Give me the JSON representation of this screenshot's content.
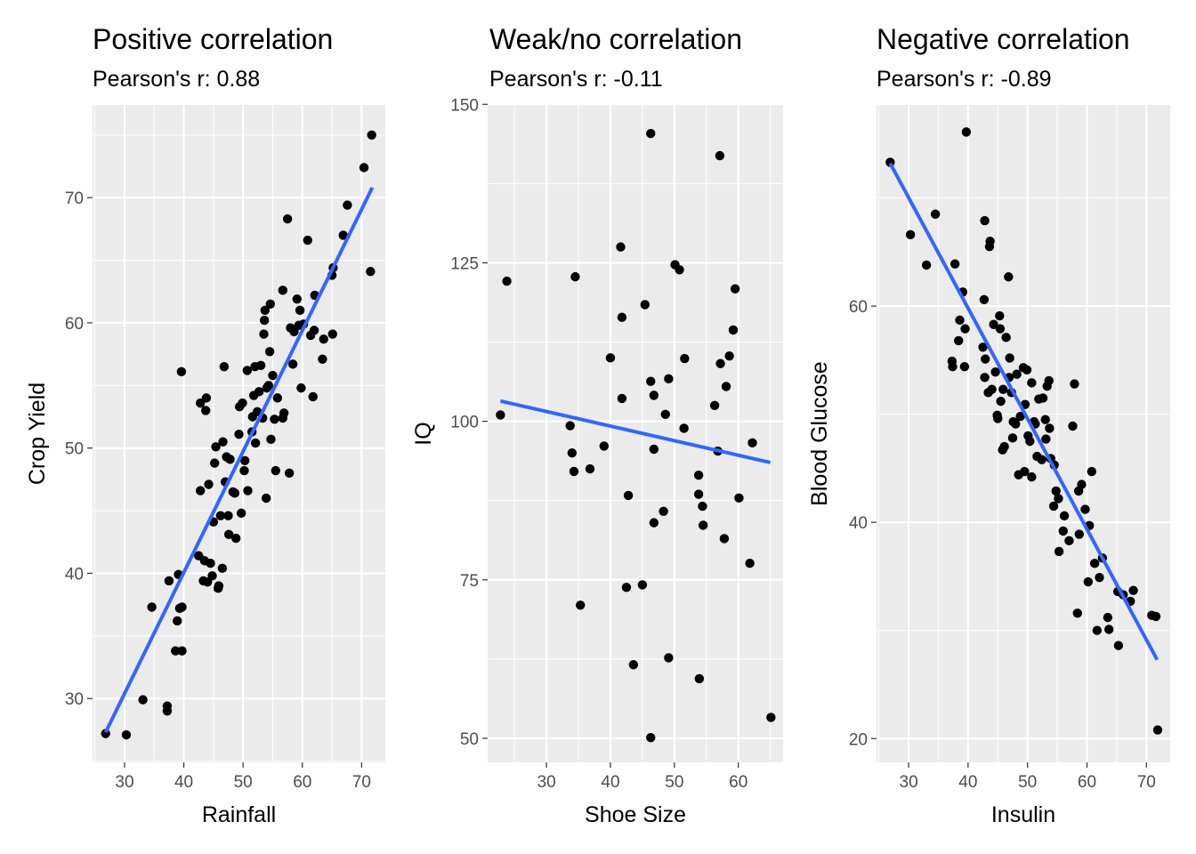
{
  "colors": {
    "panel_bg": "#ebebeb",
    "grid": "#ffffff",
    "point": "#000000",
    "fit_line": "#3366ff",
    "tick": "#333333"
  },
  "chart_data": [
    {
      "type": "scatter",
      "title": "Positive correlation",
      "subtitle": "Pearson's r:  0.88",
      "xlabel": "Rainfall",
      "ylabel": "Crop Yield",
      "xlim": [
        24.6,
        74.0
      ],
      "ylim": [
        24.9,
        77.4
      ],
      "x_ticks": [
        30,
        40,
        50,
        60,
        70
      ],
      "y_ticks": [
        30,
        40,
        50,
        60,
        70
      ],
      "grid": true,
      "fit_line": [
        [
          26.8,
          27.3
        ],
        [
          71.8,
          70.8
        ]
      ],
      "points": [
        [
          26.8,
          27.2
        ],
        [
          30.3,
          27.1
        ],
        [
          33.1,
          29.9
        ],
        [
          34.6,
          37.3
        ],
        [
          37.2,
          29.4
        ],
        [
          37.2,
          29.0
        ],
        [
          37.5,
          39.4
        ],
        [
          38.6,
          33.8
        ],
        [
          38.9,
          36.2
        ],
        [
          39.1,
          39.9
        ],
        [
          39.3,
          37.2
        ],
        [
          39.7,
          37.3
        ],
        [
          39.7,
          33.8
        ],
        [
          39.6,
          56.1
        ],
        [
          42.5,
          41.4
        ],
        [
          42.8,
          46.6
        ],
        [
          42.8,
          53.6
        ],
        [
          43.3,
          39.4
        ],
        [
          43.5,
          41.0
        ],
        [
          43.7,
          53.0
        ],
        [
          43.8,
          54.0
        ],
        [
          44.0,
          39.3
        ],
        [
          44.2,
          47.1
        ],
        [
          44.5,
          40.8
        ],
        [
          44.8,
          39.8
        ],
        [
          45.0,
          44.1
        ],
        [
          45.2,
          48.8
        ],
        [
          45.4,
          50.1
        ],
        [
          45.8,
          38.8
        ],
        [
          45.9,
          39.0
        ],
        [
          46.2,
          44.6
        ],
        [
          46.5,
          40.4
        ],
        [
          46.6,
          50.5
        ],
        [
          46.8,
          56.5
        ],
        [
          47.0,
          47.3
        ],
        [
          47.2,
          49.3
        ],
        [
          47.5,
          44.6
        ],
        [
          47.6,
          43.1
        ],
        [
          47.8,
          49.1
        ],
        [
          48.3,
          46.5
        ],
        [
          48.6,
          46.4
        ],
        [
          48.8,
          42.8
        ],
        [
          49.3,
          51.1
        ],
        [
          49.4,
          53.3
        ],
        [
          49.7,
          44.8
        ],
        [
          49.9,
          53.6
        ],
        [
          50.2,
          48.2
        ],
        [
          50.3,
          49.0
        ],
        [
          50.7,
          56.2
        ],
        [
          50.8,
          46.6
        ],
        [
          51.5,
          51.3
        ],
        [
          51.6,
          52.5
        ],
        [
          51.8,
          54.2
        ],
        [
          52.0,
          56.5
        ],
        [
          52.1,
          50.4
        ],
        [
          52.4,
          52.9
        ],
        [
          52.7,
          54.5
        ],
        [
          53.0,
          56.6
        ],
        [
          53.3,
          52.4
        ],
        [
          53.5,
          59.1
        ],
        [
          53.6,
          60.2
        ],
        [
          53.7,
          61.0
        ],
        [
          53.9,
          46.0
        ],
        [
          54.0,
          54.8
        ],
        [
          54.3,
          55.0
        ],
        [
          54.5,
          57.7
        ],
        [
          54.6,
          61.5
        ],
        [
          54.7,
          50.7
        ],
        [
          55.0,
          55.8
        ],
        [
          55.3,
          52.3
        ],
        [
          55.5,
          48.2
        ],
        [
          55.8,
          54.0
        ],
        [
          56.7,
          62.6
        ],
        [
          56.7,
          52.4
        ],
        [
          56.9,
          52.8
        ],
        [
          57.5,
          68.3
        ],
        [
          57.8,
          48.0
        ],
        [
          58.0,
          59.6
        ],
        [
          58.4,
          56.7
        ],
        [
          58.6,
          59.3
        ],
        [
          59.1,
          61.9
        ],
        [
          59.4,
          59.8
        ],
        [
          59.6,
          61.0
        ],
        [
          59.8,
          54.8
        ],
        [
          60.2,
          59.9
        ],
        [
          60.9,
          66.6
        ],
        [
          61.4,
          59.0
        ],
        [
          61.8,
          54.1
        ],
        [
          62.0,
          59.4
        ],
        [
          62.1,
          62.2
        ],
        [
          63.4,
          57.1
        ],
        [
          63.6,
          58.7
        ],
        [
          65.1,
          59.1
        ],
        [
          65.2,
          64.4
        ],
        [
          65.0,
          63.8
        ],
        [
          66.9,
          67.0
        ],
        [
          67.6,
          69.4
        ],
        [
          70.4,
          72.4
        ],
        [
          71.5,
          64.1
        ],
        [
          71.7,
          75.0
        ]
      ]
    },
    {
      "type": "scatter",
      "title": "Weak/no correlation",
      "subtitle": "Pearson's r:  -0.11",
      "xlabel": "Shoe Size",
      "ylabel": "IQ",
      "xlim": [
        20.8,
        67.0
      ],
      "ylim": [
        46.2,
        149.9
      ],
      "x_ticks": [
        30,
        40,
        50,
        60
      ],
      "y_ticks": [
        50,
        75,
        100,
        125,
        150
      ],
      "grid": true,
      "fit_line": [
        [
          22.8,
          103.2
        ],
        [
          65.0,
          93.5
        ]
      ],
      "points": [
        [
          22.8,
          101.0
        ],
        [
          23.8,
          122.1
        ],
        [
          33.7,
          99.3
        ],
        [
          34.0,
          95.0
        ],
        [
          34.3,
          92.1
        ],
        [
          34.5,
          122.8
        ],
        [
          35.3,
          71.0
        ],
        [
          36.8,
          92.5
        ],
        [
          39.0,
          96.1
        ],
        [
          40.0,
          110.0
        ],
        [
          41.6,
          127.5
        ],
        [
          41.8,
          116.4
        ],
        [
          41.8,
          103.6
        ],
        [
          42.5,
          73.8
        ],
        [
          42.8,
          88.3
        ],
        [
          43.6,
          61.6
        ],
        [
          45.0,
          74.2
        ],
        [
          45.4,
          118.4
        ],
        [
          46.3,
          145.4
        ],
        [
          46.3,
          106.3
        ],
        [
          46.3,
          50.1
        ],
        [
          46.8,
          104.1
        ],
        [
          46.8,
          95.6
        ],
        [
          46.8,
          84.0
        ],
        [
          48.3,
          85.8
        ],
        [
          48.6,
          101.1
        ],
        [
          49.1,
          106.7
        ],
        [
          49.1,
          62.7
        ],
        [
          50.1,
          124.7
        ],
        [
          50.8,
          123.9
        ],
        [
          51.5,
          98.9
        ],
        [
          51.6,
          109.9
        ],
        [
          53.8,
          91.5
        ],
        [
          53.8,
          88.5
        ],
        [
          53.9,
          59.4
        ],
        [
          54.4,
          86.6
        ],
        [
          54.5,
          83.6
        ],
        [
          56.3,
          102.5
        ],
        [
          56.8,
          95.3
        ],
        [
          57.1,
          141.9
        ],
        [
          57.2,
          109.1
        ],
        [
          57.8,
          81.5
        ],
        [
          58.1,
          105.5
        ],
        [
          58.6,
          110.3
        ],
        [
          59.2,
          114.4
        ],
        [
          59.5,
          120.9
        ],
        [
          60.1,
          87.9
        ],
        [
          61.8,
          77.6
        ],
        [
          62.2,
          96.6
        ],
        [
          65.1,
          53.3
        ]
      ]
    },
    {
      "type": "scatter",
      "title": "Negative correlation",
      "subtitle": "Pearson's r:  -0.89",
      "xlabel": "Insulin",
      "ylabel": "Blood Glucose",
      "xlim": [
        24.6,
        74.0
      ],
      "ylim": [
        17.8,
        78.6
      ],
      "x_ticks": [
        30,
        40,
        50,
        60,
        70
      ],
      "y_ticks": [
        20,
        40,
        60
      ],
      "grid": true,
      "fit_line": [
        [
          26.9,
          73.2
        ],
        [
          71.8,
          27.3
        ]
      ],
      "points": [
        [
          26.9,
          73.3
        ],
        [
          30.3,
          66.6
        ],
        [
          33.0,
          63.8
        ],
        [
          34.5,
          68.5
        ],
        [
          37.3,
          54.9
        ],
        [
          37.4,
          54.4
        ],
        [
          37.8,
          63.9
        ],
        [
          38.4,
          56.8
        ],
        [
          38.6,
          58.7
        ],
        [
          39.1,
          61.3
        ],
        [
          39.4,
          54.4
        ],
        [
          39.5,
          57.9
        ],
        [
          39.7,
          76.1
        ],
        [
          42.5,
          56.2
        ],
        [
          42.7,
          60.6
        ],
        [
          42.8,
          53.4
        ],
        [
          42.9,
          55.1
        ],
        [
          42.8,
          67.9
        ],
        [
          43.4,
          52.0
        ],
        [
          43.6,
          65.5
        ],
        [
          43.7,
          66.0
        ],
        [
          44.0,
          52.3
        ],
        [
          44.3,
          58.3
        ],
        [
          44.6,
          53.9
        ],
        [
          44.9,
          49.9
        ],
        [
          45.0,
          49.6
        ],
        [
          45.3,
          59.1
        ],
        [
          45.4,
          57.9
        ],
        [
          45.5,
          51.2
        ],
        [
          45.8,
          46.7
        ],
        [
          45.9,
          52.3
        ],
        [
          46.1,
          47.0
        ],
        [
          46.4,
          57.1
        ],
        [
          46.8,
          62.7
        ],
        [
          46.9,
          53.4
        ],
        [
          47.0,
          55.2
        ],
        [
          47.3,
          52.0
        ],
        [
          47.5,
          47.8
        ],
        [
          47.6,
          49.3
        ],
        [
          48.0,
          49.1
        ],
        [
          48.2,
          53.7
        ],
        [
          48.5,
          44.4
        ],
        [
          48.8,
          49.8
        ],
        [
          49.3,
          54.3
        ],
        [
          49.5,
          44.7
        ],
        [
          49.6,
          50.9
        ],
        [
          49.9,
          54.1
        ],
        [
          50.1,
          48.0
        ],
        [
          50.4,
          47.5
        ],
        [
          50.7,
          52.9
        ],
        [
          50.7,
          44.2
        ],
        [
          51.1,
          49.3
        ],
        [
          51.3,
          49.1
        ],
        [
          51.6,
          46.1
        ],
        [
          51.9,
          51.4
        ],
        [
          52.4,
          45.8
        ],
        [
          52.6,
          51.5
        ],
        [
          53.0,
          49.5
        ],
        [
          53.1,
          47.7
        ],
        [
          53.3,
          52.6
        ],
        [
          53.6,
          53.1
        ],
        [
          53.7,
          48.7
        ],
        [
          53.9,
          45.9
        ],
        [
          54.4,
          41.5
        ],
        [
          54.5,
          45.3
        ],
        [
          54.8,
          42.9
        ],
        [
          55.2,
          42.2
        ],
        [
          55.3,
          37.3
        ],
        [
          56.0,
          39.2
        ],
        [
          56.2,
          40.6
        ],
        [
          57.0,
          38.3
        ],
        [
          57.6,
          48.9
        ],
        [
          57.9,
          52.8
        ],
        [
          58.4,
          31.6
        ],
        [
          58.6,
          42.9
        ],
        [
          58.7,
          38.9
        ],
        [
          59.1,
          43.5
        ],
        [
          59.7,
          41.2
        ],
        [
          60.2,
          34.5
        ],
        [
          60.4,
          39.7
        ],
        [
          60.8,
          44.7
        ],
        [
          61.3,
          36.2
        ],
        [
          61.7,
          30.0
        ],
        [
          62.1,
          34.9
        ],
        [
          62.6,
          36.7
        ],
        [
          63.5,
          31.2
        ],
        [
          63.7,
          30.1
        ],
        [
          65.3,
          28.6
        ],
        [
          65.2,
          33.6
        ],
        [
          66.1,
          33.3
        ],
        [
          67.3,
          32.7
        ],
        [
          67.8,
          33.7
        ],
        [
          70.9,
          31.4
        ],
        [
          71.6,
          31.3
        ],
        [
          71.9,
          20.8
        ]
      ]
    }
  ]
}
